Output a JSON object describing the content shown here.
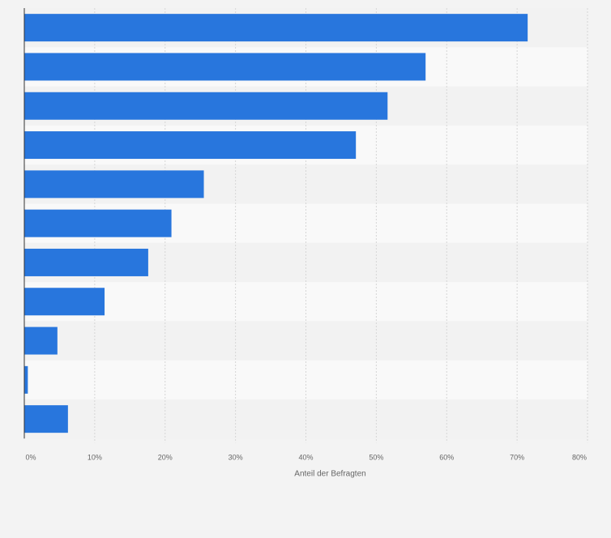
{
  "chart_data": {
    "type": "bar",
    "orientation": "horizontal",
    "categories": [
      "",
      "",
      "",
      "",
      "",
      "",
      "",
      "",
      "",
      "",
      ""
    ],
    "values": [
      71.5,
      57.0,
      51.6,
      47.1,
      25.5,
      20.9,
      17.6,
      11.4,
      4.7,
      0.5,
      6.2
    ],
    "unit": "%",
    "xlim": [
      0,
      80
    ],
    "xticks": [
      "0%",
      "10%",
      "20%",
      "30%",
      "40%",
      "50%",
      "60%",
      "70%",
      "80%"
    ],
    "xlabel": "Anteil der Befragten",
    "ylabel": "",
    "title": "",
    "grid": true,
    "legend": "none",
    "colors": {
      "bar": "#2876dd",
      "band_light": "#f9f9f9",
      "band_dark": "#f2f2f2",
      "background": "#f3f3f3",
      "grid": "#d6d6d6",
      "axis": "#333333",
      "tick_label": "#666666"
    }
  }
}
